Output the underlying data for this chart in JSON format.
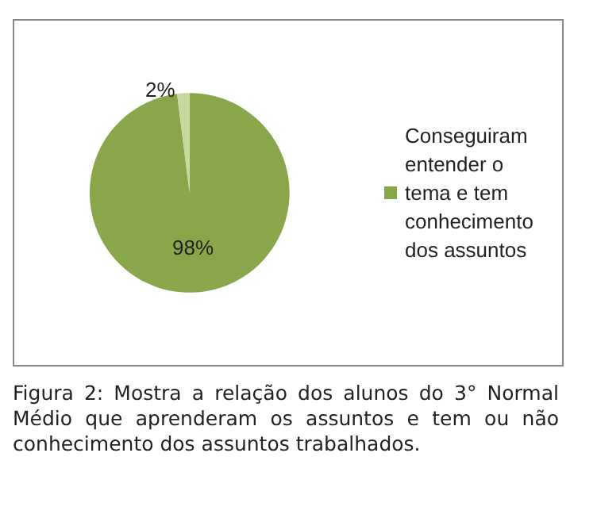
{
  "chart_data": {
    "type": "pie",
    "categories": [
      "Conseguiram entender o tema e tem conhecimento dos assuntos",
      null
    ],
    "values": [
      98,
      2
    ],
    "colors": [
      "#8aa64b",
      "#c6d9a0"
    ],
    "value_labels": [
      "98%",
      "2%"
    ],
    "legend": "right",
    "annotations": [
      "Figura 2: Mostra a relação dos alunos do 3° Normal Médio que aprenderam os assuntos e tem ou não conhecimento dos assuntos trabalhados."
    ]
  }
}
